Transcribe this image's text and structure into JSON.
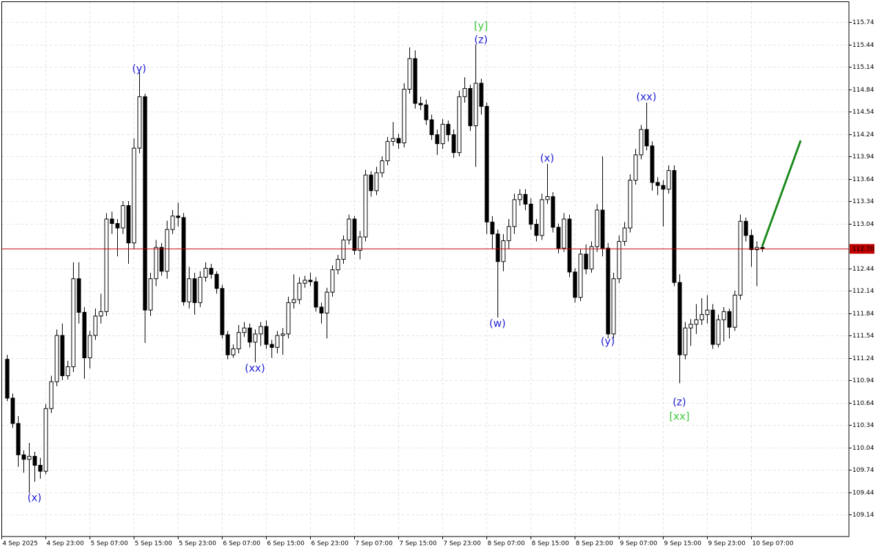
{
  "chart_data": {
    "type": "candlestick",
    "up_color": "#ffffff",
    "down_color": "#000000",
    "wick_color": "#000000",
    "grid": true,
    "xlim": [
      0,
      153.75
    ],
    "ylim": [
      108.845,
      116.017
    ],
    "xticks": [
      {
        "value": 0,
        "label": "4 Sep 2025"
      },
      {
        "value": 8,
        "label": "4 Sep 23:00"
      },
      {
        "value": 16,
        "label": "5 Sep 07:00"
      },
      {
        "value": 24,
        "label": "5 Sep 15:00"
      },
      {
        "value": 32,
        "label": "5 Sep 23:00"
      },
      {
        "value": 40,
        "label": "6 Sep 07:00"
      },
      {
        "value": 48,
        "label": "6 Sep 15:00"
      },
      {
        "value": 56,
        "label": "6 Sep 23:00"
      },
      {
        "value": 64,
        "label": "7 Sep 07:00"
      },
      {
        "value": 72,
        "label": "7 Sep 15:00"
      },
      {
        "value": 80,
        "label": "7 Sep 23:00"
      },
      {
        "value": 88,
        "label": "8 Sep 07:00"
      },
      {
        "value": 96,
        "label": "8 Sep 15:00"
      },
      {
        "value": 104,
        "label": "8 Sep 23:00"
      },
      {
        "value": 112,
        "label": "9 Sep 07:00"
      },
      {
        "value": 120,
        "label": "9 Sep 15:00"
      },
      {
        "value": 128,
        "label": "9 Sep 23:00"
      },
      {
        "value": 136,
        "label": "10 Sep 07:00"
      }
    ],
    "yticks": [
      115.74,
      115.44,
      115.14,
      114.84,
      114.54,
      114.24,
      113.94,
      113.64,
      113.34,
      113.04,
      112.44,
      112.14,
      111.84,
      111.54,
      111.24,
      110.94,
      110.64,
      110.34,
      110.04,
      109.74,
      109.44,
      109.14
    ],
    "current_price": {
      "value": 112.7,
      "label": "112.70",
      "color": "#c00000"
    },
    "x": [
      1,
      2,
      3,
      4,
      5,
      6,
      7,
      8,
      9,
      10,
      11,
      12,
      13,
      14,
      15,
      16,
      17,
      18,
      19,
      20,
      21,
      22,
      23,
      24,
      25,
      26,
      27,
      28,
      29,
      30,
      31,
      32,
      33,
      34,
      35,
      36,
      37,
      38,
      39,
      40,
      41,
      42,
      43,
      44,
      45,
      46,
      47,
      48,
      49,
      50,
      51,
      52,
      53,
      54,
      55,
      56,
      57,
      58,
      59,
      60,
      61,
      62,
      63,
      64,
      65,
      66,
      67,
      68,
      69,
      70,
      71,
      72,
      73,
      74,
      75,
      76,
      77,
      78,
      79,
      80,
      81,
      82,
      83,
      84,
      85,
      86,
      87,
      88,
      89,
      90,
      91,
      92,
      93,
      94,
      95,
      96,
      97,
      98,
      99,
      100,
      101,
      102,
      103,
      104,
      105,
      106,
      107,
      108,
      109,
      110,
      111,
      112,
      113,
      114,
      115,
      116,
      117,
      118,
      119,
      120,
      121,
      122,
      123,
      124,
      125,
      126,
      127,
      128,
      129,
      130,
      131,
      132,
      133,
      134,
      135,
      136,
      137,
      138
    ],
    "ohlc": [
      [
        111.22,
        111.28,
        110.66,
        110.7
      ],
      [
        110.7,
        110.76,
        110.3,
        110.36
      ],
      [
        110.36,
        110.46,
        109.78,
        109.94
      ],
      [
        109.94,
        110.0,
        109.7,
        109.88
      ],
      [
        109.88,
        110.1,
        109.43,
        109.92
      ],
      [
        109.92,
        109.98,
        109.58,
        109.8
      ],
      [
        109.8,
        109.9,
        109.62,
        109.72
      ],
      [
        109.72,
        110.62,
        109.68,
        110.56
      ],
      [
        110.56,
        111.0,
        110.5,
        110.92
      ],
      [
        110.92,
        111.62,
        110.86,
        111.54
      ],
      [
        111.54,
        111.7,
        110.94,
        111.0
      ],
      [
        111.0,
        111.2,
        110.95,
        111.12
      ],
      [
        111.12,
        112.52,
        111.05,
        112.3
      ],
      [
        112.3,
        112.52,
        111.7,
        111.85
      ],
      [
        111.85,
        111.92,
        110.96,
        111.24
      ],
      [
        111.24,
        111.6,
        111.1,
        111.54
      ],
      [
        111.54,
        111.9,
        111.48,
        111.8
      ],
      [
        111.8,
        112.1,
        111.7,
        111.86
      ],
      [
        111.86,
        113.18,
        111.8,
        113.1
      ],
      [
        113.1,
        113.2,
        112.9,
        113.04
      ],
      [
        113.04,
        113.1,
        112.6,
        112.98
      ],
      [
        112.98,
        113.34,
        112.9,
        113.28
      ],
      [
        113.28,
        113.34,
        112.5,
        112.78
      ],
      [
        112.78,
        114.18,
        112.7,
        114.05
      ],
      [
        114.05,
        115.07,
        113.98,
        114.74
      ],
      [
        114.74,
        114.78,
        111.44,
        111.88
      ],
      [
        111.88,
        112.38,
        111.8,
        112.3
      ],
      [
        112.3,
        112.82,
        112.2,
        112.72
      ],
      [
        112.72,
        112.78,
        112.34,
        112.4
      ],
      [
        112.4,
        113.08,
        112.3,
        112.96
      ],
      [
        112.96,
        113.22,
        112.9,
        113.14
      ],
      [
        113.14,
        113.32,
        113.0,
        113.12
      ],
      [
        113.12,
        113.18,
        111.94,
        111.99
      ],
      [
        111.99,
        112.46,
        111.9,
        112.3
      ],
      [
        112.3,
        112.38,
        111.82,
        111.98
      ],
      [
        111.98,
        112.4,
        111.92,
        112.32
      ],
      [
        112.32,
        112.52,
        112.26,
        112.44
      ],
      [
        112.44,
        112.5,
        112.3,
        112.36
      ],
      [
        112.36,
        112.4,
        112.1,
        112.17
      ],
      [
        112.17,
        112.22,
        111.5,
        111.55
      ],
      [
        111.55,
        111.6,
        111.22,
        111.28
      ],
      [
        111.28,
        111.42,
        111.24,
        111.36
      ],
      [
        111.36,
        111.68,
        111.3,
        111.58
      ],
      [
        111.58,
        111.72,
        111.52,
        111.64
      ],
      [
        111.64,
        111.7,
        111.38,
        111.45
      ],
      [
        111.45,
        111.62,
        111.18,
        111.56
      ],
      [
        111.56,
        111.72,
        111.4,
        111.66
      ],
      [
        111.66,
        111.74,
        111.36,
        111.42
      ],
      [
        111.42,
        111.48,
        111.24,
        111.38
      ],
      [
        111.38,
        111.6,
        111.3,
        111.54
      ],
      [
        111.54,
        111.64,
        111.28,
        111.56
      ],
      [
        111.56,
        112.06,
        111.5,
        111.98
      ],
      [
        111.98,
        112.36,
        111.9,
        112.02
      ],
      [
        112.02,
        112.32,
        111.96,
        112.24
      ],
      [
        112.24,
        112.34,
        112.18,
        112.28
      ],
      [
        112.28,
        112.38,
        112.2,
        112.26
      ],
      [
        112.26,
        112.32,
        111.86,
        111.92
      ],
      [
        111.92,
        111.98,
        111.7,
        111.84
      ],
      [
        111.84,
        112.18,
        111.5,
        112.12
      ],
      [
        112.12,
        112.48,
        112.06,
        112.42
      ],
      [
        112.42,
        112.62,
        112.36,
        112.56
      ],
      [
        112.56,
        112.88,
        112.5,
        112.82
      ],
      [
        112.82,
        113.16,
        112.76,
        113.1
      ],
      [
        113.1,
        113.14,
        112.62,
        112.68
      ],
      [
        112.68,
        112.94,
        112.56,
        112.86
      ],
      [
        112.86,
        113.76,
        112.8,
        113.69
      ],
      [
        113.69,
        113.74,
        113.4,
        113.48
      ],
      [
        113.48,
        113.8,
        113.42,
        113.72
      ],
      [
        113.72,
        113.94,
        113.66,
        113.88
      ],
      [
        113.88,
        114.2,
        113.82,
        114.14
      ],
      [
        114.14,
        114.4,
        114.08,
        114.18
      ],
      [
        114.18,
        114.24,
        114.04,
        114.12
      ],
      [
        114.12,
        114.92,
        114.06,
        114.84
      ],
      [
        114.84,
        115.4,
        114.78,
        115.25
      ],
      [
        115.25,
        115.36,
        114.58,
        114.65
      ],
      [
        114.65,
        114.74,
        114.56,
        114.63
      ],
      [
        114.63,
        114.7,
        114.36,
        114.43
      ],
      [
        114.43,
        114.5,
        114.16,
        114.23
      ],
      [
        114.23,
        114.3,
        113.96,
        114.11
      ],
      [
        114.11,
        114.44,
        114.04,
        114.37
      ],
      [
        114.37,
        114.42,
        114.14,
        114.23
      ],
      [
        114.23,
        114.3,
        113.92,
        113.99
      ],
      [
        113.99,
        114.82,
        113.94,
        114.74
      ],
      [
        114.74,
        115.0,
        114.66,
        114.85
      ],
      [
        114.85,
        114.9,
        114.28,
        114.35
      ],
      [
        114.35,
        115.44,
        113.8,
        114.92
      ],
      [
        114.92,
        114.98,
        114.5,
        114.61
      ],
      [
        114.61,
        114.66,
        112.9,
        113.06
      ],
      [
        113.06,
        113.14,
        112.7,
        112.9
      ],
      [
        112.9,
        112.96,
        111.78,
        112.53
      ],
      [
        112.53,
        112.9,
        112.4,
        112.81
      ],
      [
        112.81,
        113.1,
        112.7,
        113.0
      ],
      [
        113.0,
        113.44,
        112.9,
        113.36
      ],
      [
        113.36,
        113.5,
        113.28,
        113.43
      ],
      [
        113.43,
        113.5,
        113.22,
        113.3
      ],
      [
        113.3,
        113.38,
        112.96,
        113.03
      ],
      [
        113.03,
        113.1,
        112.8,
        112.88
      ],
      [
        112.88,
        113.44,
        112.82,
        113.36
      ],
      [
        113.36,
        113.84,
        113.3,
        113.4
      ],
      [
        113.4,
        113.46,
        112.92,
        112.99
      ],
      [
        112.99,
        113.04,
        112.64,
        112.71
      ],
      [
        112.71,
        113.18,
        112.66,
        113.1
      ],
      [
        113.1,
        113.16,
        112.32,
        112.39
      ],
      [
        112.39,
        112.44,
        111.98,
        112.05
      ],
      [
        112.05,
        112.7,
        112.0,
        112.63
      ],
      [
        112.63,
        112.76,
        112.36,
        112.43
      ],
      [
        112.43,
        112.8,
        112.38,
        112.73
      ],
      [
        112.73,
        113.3,
        112.66,
        113.22
      ],
      [
        113.22,
        113.94,
        112.6,
        112.71
      ],
      [
        112.71,
        112.78,
        111.5,
        111.56
      ],
      [
        111.56,
        112.38,
        111.5,
        112.3
      ],
      [
        112.3,
        112.88,
        112.24,
        112.8
      ],
      [
        112.8,
        113.06,
        112.74,
        112.98
      ],
      [
        112.98,
        113.7,
        112.92,
        113.62
      ],
      [
        113.62,
        114.04,
        113.56,
        113.96
      ],
      [
        113.96,
        114.36,
        113.9,
        114.3
      ],
      [
        114.3,
        114.66,
        114.02,
        114.08
      ],
      [
        114.08,
        114.14,
        113.48,
        113.59
      ],
      [
        113.59,
        113.66,
        113.42,
        113.55
      ],
      [
        113.55,
        113.62,
        113.0,
        113.5
      ],
      [
        113.5,
        113.82,
        113.44,
        113.75
      ],
      [
        113.75,
        113.82,
        112.2,
        112.25
      ],
      [
        112.25,
        112.36,
        110.9,
        111.28
      ],
      [
        111.28,
        111.72,
        111.22,
        111.64
      ],
      [
        111.64,
        111.76,
        111.4,
        111.69
      ],
      [
        111.69,
        111.96,
        111.56,
        111.75
      ],
      [
        111.75,
        112.04,
        111.68,
        111.82
      ],
      [
        111.82,
        112.08,
        111.7,
        111.88
      ],
      [
        111.88,
        111.96,
        111.36,
        111.42
      ],
      [
        111.42,
        111.82,
        111.38,
        111.75
      ],
      [
        111.75,
        111.92,
        111.46,
        111.86
      ],
      [
        111.86,
        111.9,
        111.5,
        111.65
      ],
      [
        111.65,
        112.14,
        111.6,
        112.08
      ],
      [
        112.08,
        113.16,
        112.02,
        113.07
      ],
      [
        113.07,
        113.12,
        112.8,
        112.88
      ],
      [
        112.88,
        112.96,
        112.46,
        112.69
      ],
      [
        112.69,
        112.8,
        112.2,
        112.72
      ],
      [
        112.72,
        112.76,
        112.66,
        112.7
      ]
    ],
    "annotations": [
      {
        "text": "(x)",
        "color": "#1f1fd6"
      },
      {
        "text": "(y)",
        "color": "#1f1fd6"
      },
      {
        "text": "(xx)",
        "color": "#1f1fd6"
      },
      {
        "text": "[y]",
        "color": "#3cc83c"
      },
      {
        "text": "(z)",
        "color": "#1f1fd6"
      },
      {
        "text": "(w)",
        "color": "#1f1fd6"
      },
      {
        "text": "(x)",
        "color": "#1f1fd6"
      },
      {
        "text": "(y)",
        "color": "#1f1fd6"
      },
      {
        "text": "(xx)",
        "color": "#1f1fd6"
      },
      {
        "text": "(z)",
        "color": "#1f1fd6"
      },
      {
        "text": "[xx]",
        "color": "#3cc83c"
      }
    ]
  }
}
